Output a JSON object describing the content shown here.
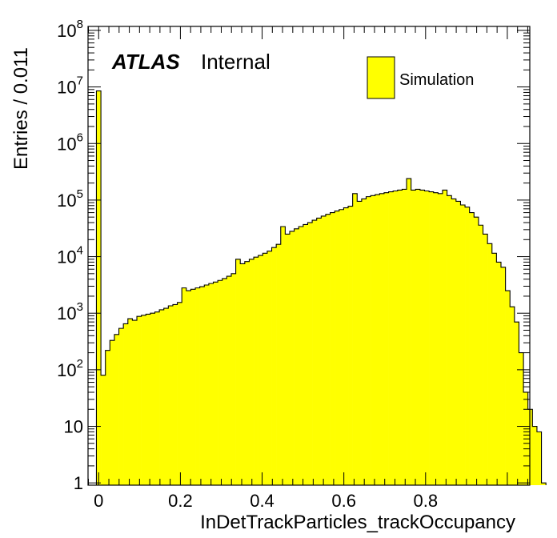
{
  "chart_data": {
    "type": "bar",
    "xlabel": "InDetTrackParticles_trackOccupancy",
    "ylabel": "Entries / 0.011",
    "xlim": [
      -0.026,
      1.055
    ],
    "ylim_log10": [
      -0.04,
      8.07
    ],
    "y_scale": "log",
    "bin_width": 0.011,
    "x_ticks": [
      0,
      0.2,
      0.4,
      0.6,
      0.8
    ],
    "x_tick_labels": [
      "0",
      "0.2",
      "0.4",
      "0.6",
      "0.8"
    ],
    "y_ticks": [
      {
        "base": "1",
        "exp": ""
      },
      {
        "base": "10",
        "exp": ""
      },
      {
        "base": "10",
        "exp": "2"
      },
      {
        "base": "10",
        "exp": "3"
      },
      {
        "base": "10",
        "exp": "4"
      },
      {
        "base": "10",
        "exp": "5"
      },
      {
        "base": "10",
        "exp": "6"
      },
      {
        "base": "10",
        "exp": "7"
      },
      {
        "base": "10",
        "exp": "8"
      }
    ],
    "fill_color": "#ffff00",
    "line_color": "#000000",
    "legend_position": "top-right",
    "label_main": "ATLAS",
    "label_sub": "Internal",
    "series": [
      {
        "name": "Simulation",
        "x_start": -0.0055,
        "values": [
          8500000,
          80,
          220,
          330,
          420,
          540,
          650,
          800,
          750,
          880,
          920,
          960,
          1000,
          1050,
          1150,
          1220,
          1350,
          1420,
          1550,
          2800,
          2500,
          2650,
          2800,
          2950,
          3150,
          3350,
          3550,
          3800,
          4100,
          4500,
          5000,
          9000,
          7500,
          8200,
          9000,
          9800,
          10500,
          11500,
          12500,
          14500,
          16500,
          34000,
          25000,
          28000,
          31000,
          34000,
          37000,
          40000,
          44000,
          48000,
          52000,
          56000,
          60000,
          64000,
          68000,
          73000,
          78000,
          130000,
          95000,
          105000,
          115000,
          120000,
          125000,
          130000,
          135000,
          140000,
          145000,
          150000,
          155000,
          240000,
          150000,
          155000,
          150000,
          145000,
          140000,
          135000,
          130000,
          150000,
          120000,
          105000,
          95000,
          82000,
          75000,
          60000,
          50000,
          36000,
          25000,
          17000,
          11500,
          8000,
          6500,
          2500,
          1300,
          700,
          200,
          40,
          20,
          10,
          8,
          1
        ]
      }
    ]
  }
}
